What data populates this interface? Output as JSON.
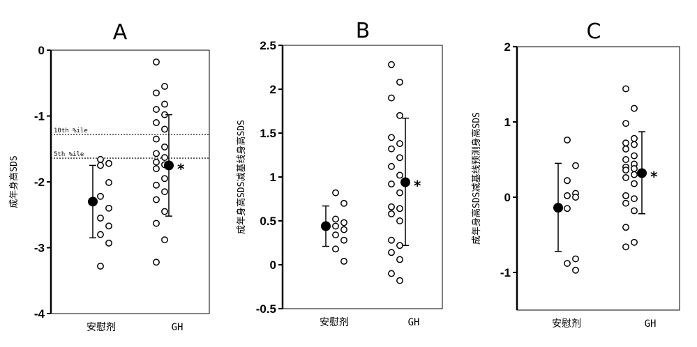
{
  "chart_data": [
    {
      "type": "scatter",
      "title": "A",
      "ylabel": "成年身高SDS",
      "categories": [
        "安慰剂",
        "GH"
      ],
      "ylim": [
        -4,
        0
      ],
      "yticks": [
        "0",
        "-1",
        "-2",
        "-3",
        "-4"
      ],
      "grid": false,
      "reference_lines": [
        {
          "y": -1.28,
          "label": "10th %ile"
        },
        {
          "y": -1.64,
          "label": "5th %ile"
        }
      ],
      "series": [
        {
          "category": "安慰剂",
          "points": [
            -1.66,
            -1.72,
            -1.75,
            -2.01,
            -2.22,
            -2.4,
            -2.55,
            -2.67,
            -2.8,
            -2.93,
            -3.28
          ],
          "mean": -2.3,
          "err_low": -2.85,
          "err_high": -1.75
        },
        {
          "category": "GH",
          "points": [
            -0.18,
            -0.55,
            -0.65,
            -0.82,
            -0.9,
            -0.98,
            -1.1,
            -1.2,
            -1.35,
            -1.47,
            -1.57,
            -1.63,
            -1.7,
            -1.74,
            -1.8,
            -1.95,
            -2.05,
            -2.15,
            -2.27,
            -2.45,
            -2.63,
            -2.88,
            -3.22
          ],
          "mean": -1.75,
          "err_low": -2.52,
          "err_high": -0.98,
          "significance": "*"
        }
      ]
    },
    {
      "type": "scatter",
      "title": "B",
      "ylabel": "成年身高SDS减基线身高SDS",
      "categories": [
        "安慰剂",
        "GH"
      ],
      "ylim": [
        -0.5,
        2.5
      ],
      "yticks": [
        "2.5",
        "2",
        "1.5",
        "1",
        "0.5",
        "0",
        "-0.5"
      ],
      "grid": false,
      "series": [
        {
          "category": "安慰剂",
          "points": [
            0.82,
            0.7,
            0.52,
            0.48,
            0.44,
            0.4,
            0.34,
            0.28,
            0.18,
            0.04
          ],
          "mean": 0.44,
          "err_low": 0.21,
          "err_high": 0.67
        },
        {
          "category": "GH",
          "points": [
            2.28,
            2.08,
            1.9,
            1.7,
            1.45,
            1.38,
            1.32,
            1.22,
            1.12,
            1.02,
            0.92,
            0.82,
            0.66,
            0.64,
            0.58,
            0.5,
            0.28,
            0.22,
            0.14,
            0.06,
            -0.1,
            -0.18
          ],
          "mean": 0.94,
          "err_low": 0.22,
          "err_high": 1.67,
          "significance": "*"
        }
      ]
    },
    {
      "type": "scatter",
      "title": "C",
      "ylabel": "成年身高SDS减基线预测身高SDS",
      "categories": [
        "安慰剂",
        "GH"
      ],
      "ylim": [
        -1.5,
        2
      ],
      "yticks": [
        "2",
        "1",
        "0",
        "-1"
      ],
      "grid": false,
      "series": [
        {
          "category": "安慰剂",
          "points": [
            0.76,
            0.42,
            0.22,
            0.05,
            0.02,
            0.0,
            -0.15,
            -0.82,
            -0.88,
            -0.97
          ],
          "mean": -0.14,
          "err_low": -0.72,
          "err_high": 0.45
        },
        {
          "category": "GH",
          "points": [
            1.44,
            1.18,
            0.98,
            0.78,
            0.72,
            0.7,
            0.64,
            0.55,
            0.5,
            0.44,
            0.4,
            0.38,
            0.36,
            0.3,
            0.26,
            0.18,
            0.02,
            -0.02,
            -0.08,
            -0.18,
            -0.4,
            -0.6,
            -0.66
          ],
          "mean": 0.32,
          "err_low": -0.22,
          "err_high": 0.87,
          "significance": "*"
        }
      ]
    }
  ]
}
